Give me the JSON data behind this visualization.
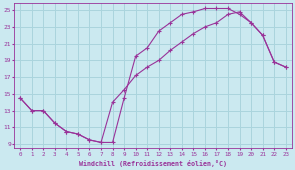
{
  "xlabel": "Windchill (Refroidissement éolien,°C)",
  "bg_color": "#cbe9f0",
  "grid_color": "#aad4dd",
  "line_color": "#993399",
  "xlim": [
    -0.5,
    23.5
  ],
  "ylim": [
    8.5,
    25.8
  ],
  "yticks": [
    9,
    11,
    13,
    15,
    17,
    19,
    21,
    23,
    25
  ],
  "xticks": [
    0,
    1,
    2,
    3,
    4,
    5,
    6,
    7,
    8,
    9,
    10,
    11,
    12,
    13,
    14,
    15,
    16,
    17,
    18,
    19,
    20,
    21,
    22,
    23
  ],
  "series1_x": [
    0,
    1,
    2,
    3,
    4,
    5,
    6,
    7,
    8,
    9,
    10,
    11,
    12,
    13,
    14,
    15,
    16,
    17,
    18,
    19,
    20,
    21,
    22,
    23
  ],
  "series1_y": [
    14.5,
    13.0,
    13.0,
    11.5,
    10.5,
    10.2,
    9.5,
    9.2,
    9.2,
    14.5,
    19.5,
    20.5,
    22.5,
    23.5,
    24.5,
    24.8,
    25.2,
    25.2,
    25.2,
    24.5,
    23.5,
    22.0,
    18.8,
    18.2
  ],
  "series2_x": [
    0,
    1,
    2,
    3,
    4,
    5,
    6,
    7,
    8,
    9,
    10,
    11,
    12,
    13,
    14,
    15,
    16,
    17,
    18,
    19,
    20,
    21,
    22,
    23
  ],
  "series2_y": [
    14.5,
    13.0,
    13.0,
    11.5,
    10.5,
    10.2,
    9.5,
    9.2,
    14.0,
    15.5,
    17.2,
    18.2,
    19.0,
    20.2,
    21.2,
    22.2,
    23.0,
    23.5,
    24.5,
    24.8,
    23.5,
    22.0,
    18.8,
    18.2
  ]
}
